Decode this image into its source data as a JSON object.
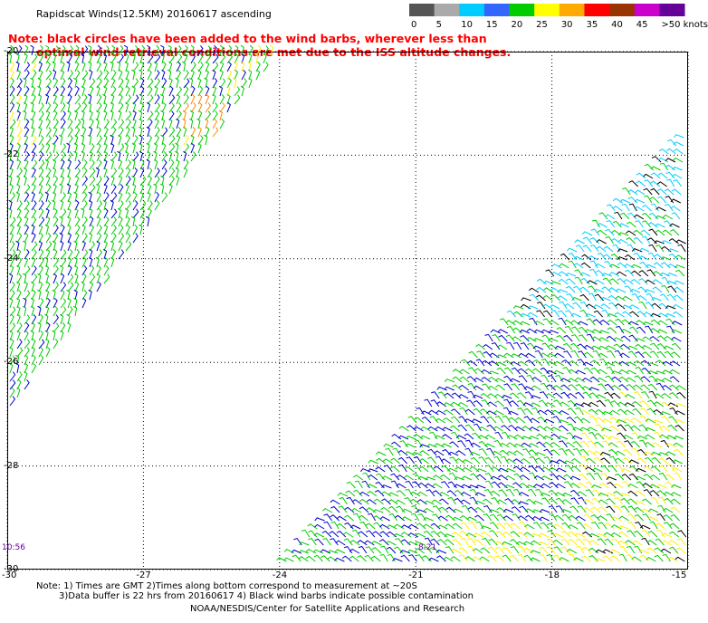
{
  "title": "Rapidscat Winds(12.5KM) 20160617 ascending",
  "notice": {
    "line1": "Note: black circles have been added to the wind barbs, wherever less than",
    "line2": "optimal wind retrieval conditions are met due to the ISS altitude changes."
  },
  "legend": {
    "labels": [
      "0",
      "5",
      "10",
      "15",
      "20",
      "25",
      "30",
      "35",
      "40",
      "45",
      ">50 knots"
    ],
    "colors": [
      "#555555",
      "#aaaaaa",
      "#00ccff",
      "#3366ff",
      "#00cc00",
      "#ffff00",
      "#ffaa00",
      "#ff0000",
      "#993300",
      "#cc00cc",
      "#660099"
    ]
  },
  "map": {
    "lat_labels": [
      "-20",
      "-22",
      "-24",
      "-26",
      "-28",
      "-30"
    ],
    "lat_values": [
      -20,
      -22,
      -24,
      -26,
      -28,
      -30
    ],
    "lon_labels": [
      "-30",
      "-27",
      "-24",
      "-21",
      "-18",
      "-15"
    ],
    "lon_values": [
      -30,
      -27,
      -24,
      -21,
      -18,
      -15
    ],
    "lat_range": [
      -30,
      -20
    ],
    "lon_range": [
      -30,
      -15
    ],
    "time_labels": [
      "10:56",
      "8:21"
    ],
    "swath_colors": {
      "green": "#00cc00",
      "blue": "#0000cc",
      "yellow": "#ffee00",
      "cyan": "#00ccff",
      "orange": "#ff8800",
      "black": "#000000"
    }
  },
  "footer": {
    "line1": "Note: 1) Times are GMT 2)Times along bottom correspond to measurement at ~20S",
    "line2": "3)Data buffer is 22 hrs from 20160617 4) Black wind barbs indicate possible contamination",
    "line3": "NOAA/NESDIS/Center for Satellite Applications and Research"
  }
}
